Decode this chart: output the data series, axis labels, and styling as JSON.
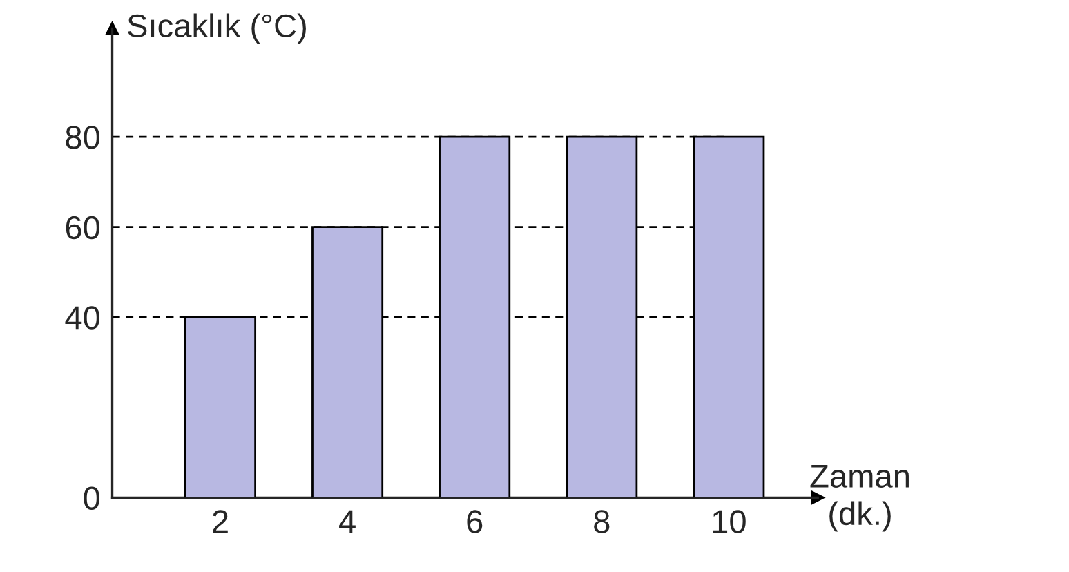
{
  "chart_data": {
    "type": "bar",
    "ylabel": "Sıcaklık (°C)",
    "xlabel": "Zaman\n(dk.)",
    "categories": [
      "2",
      "4",
      "6",
      "8",
      "10"
    ],
    "values": [
      40,
      60,
      80,
      80,
      80
    ],
    "color": "#b8b8e2",
    "ylim": [
      0,
      104
    ],
    "yticks": [
      0,
      40,
      60,
      80
    ],
    "grid": "y",
    "line_style": "dashed"
  }
}
